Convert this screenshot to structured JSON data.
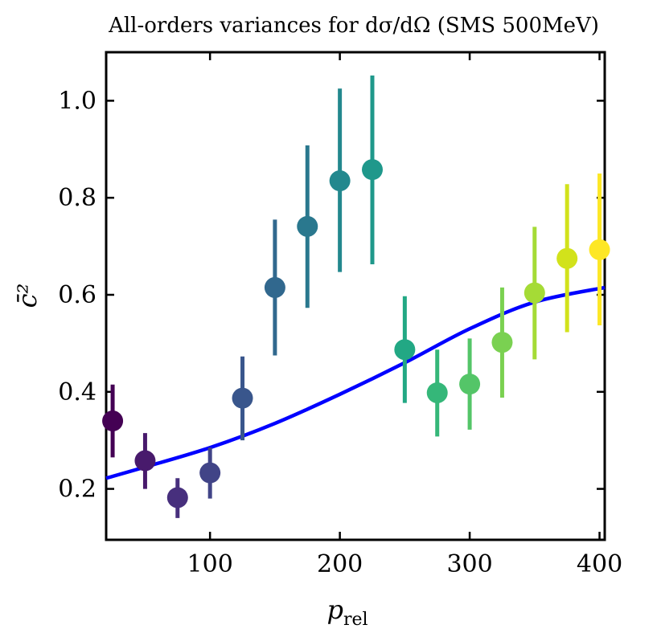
{
  "chart_data": {
    "type": "scatter",
    "title": "All-orders variances for dσ/dΩ (SMS 500MeV)",
    "xlabel": "p",
    "xlabel_sub": "rel",
    "ylabel": "c̄²",
    "xlim": [
      20,
      404
    ],
    "ylim": [
      0.095,
      1.1
    ],
    "xticks": [
      100,
      200,
      300,
      400
    ],
    "yticks": [
      0.2,
      0.4,
      0.6,
      0.8,
      1.0
    ],
    "grid": false,
    "colormap": "viridis",
    "points": [
      {
        "x": 25,
        "y": 0.34,
        "lo": 0.265,
        "hi": 0.415
      },
      {
        "x": 50,
        "y": 0.258,
        "lo": 0.2,
        "hi": 0.315
      },
      {
        "x": 75,
        "y": 0.182,
        "lo": 0.14,
        "hi": 0.222
      },
      {
        "x": 100,
        "y": 0.233,
        "lo": 0.18,
        "hi": 0.285
      },
      {
        "x": 125,
        "y": 0.387,
        "lo": 0.3,
        "hi": 0.473
      },
      {
        "x": 150,
        "y": 0.615,
        "lo": 0.475,
        "hi": 0.755
      },
      {
        "x": 175,
        "y": 0.741,
        "lo": 0.573,
        "hi": 0.908
      },
      {
        "x": 200,
        "y": 0.835,
        "lo": 0.647,
        "hi": 1.025
      },
      {
        "x": 225,
        "y": 0.858,
        "lo": 0.663,
        "hi": 1.052
      },
      {
        "x": 250,
        "y": 0.487,
        "lo": 0.377,
        "hi": 0.597
      },
      {
        "x": 275,
        "y": 0.398,
        "lo": 0.308,
        "hi": 0.487
      },
      {
        "x": 300,
        "y": 0.416,
        "lo": 0.322,
        "hi": 0.51
      },
      {
        "x": 325,
        "y": 0.502,
        "lo": 0.388,
        "hi": 0.615
      },
      {
        "x": 350,
        "y": 0.604,
        "lo": 0.467,
        "hi": 0.74
      },
      {
        "x": 375,
        "y": 0.675,
        "lo": 0.523,
        "hi": 0.828
      },
      {
        "x": 400,
        "y": 0.693,
        "lo": 0.537,
        "hi": 0.85
      }
    ],
    "point_colors": [
      "#440154",
      "#481a6c",
      "#472f7d",
      "#414487",
      "#39568c",
      "#31688e",
      "#2a788e",
      "#23888e",
      "#1f988b",
      "#22a884",
      "#35b779",
      "#54c568",
      "#7ad151",
      "#a5db36",
      "#d2e21b",
      "#fde725"
    ],
    "curve": {
      "color": "#0000ff",
      "x": [
        20,
        50,
        100,
        150,
        200,
        250,
        300,
        350,
        404
      ],
      "y": [
        0.222,
        0.245,
        0.285,
        0.335,
        0.395,
        0.46,
        0.53,
        0.585,
        0.615
      ]
    }
  }
}
